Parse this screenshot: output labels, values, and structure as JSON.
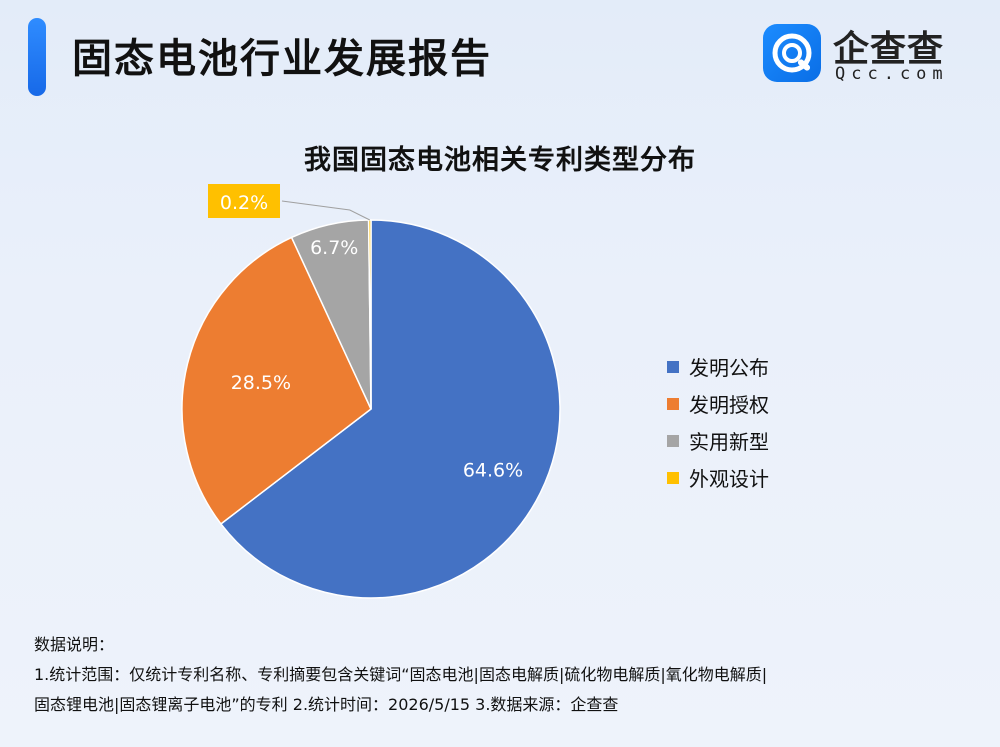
{
  "header": {
    "title": "固态电池行业发展报告",
    "logo_cn": "企查查",
    "logo_en": "Qcc.com",
    "accent_color": "#1a73f0"
  },
  "chart_data": {
    "type": "pie",
    "title": "我国固态电池相关专利类型分布",
    "categories": [
      "发明公布",
      "发明授权",
      "实用新型",
      "外观设计"
    ],
    "values": [
      64.6,
      28.5,
      6.7,
      0.2
    ],
    "labels": [
      "64.6%",
      "28.5%",
      "6.7%",
      "0.2%"
    ],
    "colors": [
      "#4472c4",
      "#ed7d31",
      "#a5a5a5",
      "#ffc000"
    ],
    "legend_position": "right"
  },
  "notes": {
    "heading": "数据说明：",
    "line1": "1.统计范围：仅统计专利名称、专利摘要包含关键词“固态电池|固态电解质|硫化物电解质|氧化物电解质|",
    "line2": "固态锂电池|固态锂离子电池”的专利    2.统计时间：2026/5/15    3.数据来源：企查查"
  }
}
